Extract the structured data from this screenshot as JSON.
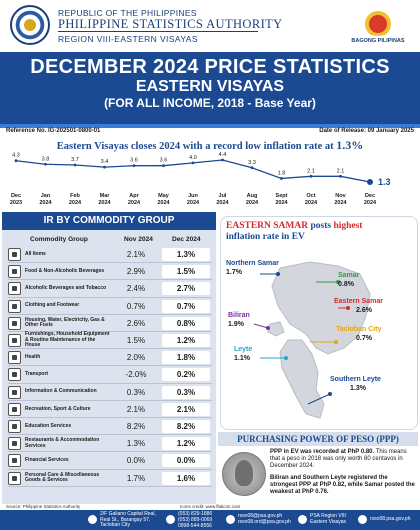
{
  "header": {
    "line1": "REPUBLIC OF THE PHILIPPINES",
    "line2": "PHILIPPINE STATISTICS AUTHORITY",
    "line3": "REGION VIII-EASTERN VISAYAS",
    "logo_label": "BAGONG PILIPINAS"
  },
  "banner": {
    "title": "DECEMBER 2024 PRICE STATISTICS",
    "subtitle": "EASTERN VISAYAS",
    "subtitle2": "(FOR ALL INCOME, 2018 - Base Year)"
  },
  "reference": "Reference No. IG-202501-0800-01",
  "release": "Date of Release: 09 January 2025",
  "headline": {
    "text": "Eastern Visayas closes 2024 with a record low inflation rate at",
    "value": "1.3%"
  },
  "chart_data": {
    "type": "line",
    "categories": [
      "Dec 2023",
      "Jan 2024",
      "Feb 2024",
      "Mar 2024",
      "Apr 2024",
      "May 2024",
      "Jun 2024",
      "Jul 2024",
      "Aug 2024",
      "Sept 2024",
      "Oct 2024",
      "Nov 2024",
      "Dec 2024"
    ],
    "category_line1": [
      "Dec",
      "Jan",
      "Feb",
      "Mar",
      "Apr",
      "May",
      "Jun",
      "Jul",
      "Aug",
      "Sept",
      "Oct",
      "Nov",
      "Dec"
    ],
    "category_line2": [
      "2023",
      "2024",
      "2024",
      "2024",
      "2024",
      "2024",
      "2024",
      "2024",
      "2024",
      "2024",
      "2024",
      "2024",
      "2024"
    ],
    "values": [
      4.3,
      3.8,
      3.7,
      3.4,
      3.6,
      3.6,
      4.0,
      4.4,
      3.3,
      1.8,
      2.1,
      2.1,
      1.3
    ],
    "labels": [
      "4.3",
      "3.8",
      "3.7",
      "3.4",
      "3.6",
      "3.6",
      "4.0",
      "4.4",
      "3.3",
      "1.8",
      "2.1",
      "2.1",
      "1.3"
    ],
    "line_color": "#1b4a93",
    "last_point_color": "#1b4a93"
  },
  "ir_table": {
    "title": "IR BY COMMODITY GROUP",
    "col_group": "Commodity Group",
    "col_nov": "Nov 2024",
    "col_dec": "Dec 2024",
    "rows": [
      {
        "icon": "basket-icon",
        "name": "All Items",
        "nov": "2.1%",
        "dec": "1.3%"
      },
      {
        "icon": "food-icon",
        "name": "Food & Non-Alcoholic Beverages",
        "nov": "2.9%",
        "dec": "1.5%"
      },
      {
        "icon": "bottle-icon",
        "name": "Alcoholic Beverages and Tobacco",
        "nov": "2.4%",
        "dec": "2.7%"
      },
      {
        "icon": "shirt-icon",
        "name": "Clothing and Footwear",
        "nov": "0.7%",
        "dec": "0.7%"
      },
      {
        "icon": "house-icon",
        "name": "Housing, Water, Electricity, Gas & Other Fuels",
        "nov": "2.6%",
        "dec": "0.8%"
      },
      {
        "icon": "sofa-icon",
        "name": "Furnishings, Household Equipment & Routine Maintenance of the House",
        "nov": "1.5%",
        "dec": "1.2%"
      },
      {
        "icon": "health-icon",
        "name": "Health",
        "nov": "2.0%",
        "dec": "1.8%"
      },
      {
        "icon": "car-icon",
        "name": "Transport",
        "nov": "-2.0%",
        "dec": "0.2%"
      },
      {
        "icon": "phone-icon",
        "name": "Information & Communication",
        "nov": "0.3%",
        "dec": "0.3%"
      },
      {
        "icon": "ball-icon",
        "name": "Recreation, Sport & Culture",
        "nov": "2.1%",
        "dec": "2.1%"
      },
      {
        "icon": "school-icon",
        "name": "Education Services",
        "nov": "8.2%",
        "dec": "8.2%"
      },
      {
        "icon": "restaurant-icon",
        "name": "Restaurants & Accommodation Services",
        "nov": "1.3%",
        "dec": "1.2%"
      },
      {
        "icon": "bank-icon",
        "name": "Financial Services",
        "nov": "0.0%",
        "dec": "0.0%"
      },
      {
        "icon": "care-icon",
        "name": "Personal Care & Miscellaneous Goods & Services",
        "nov": "1.7%",
        "dec": "1.6%"
      }
    ]
  },
  "map": {
    "title_part1": "EASTERN SAMAR",
    "title_part2": "posts",
    "title_part3": "highest",
    "title_line2": "inflation rate in EV",
    "provinces": [
      {
        "name": "Northern Samar",
        "value": "1.7%",
        "color": "#1b4a93"
      },
      {
        "name": "Samar",
        "value": "0.8%",
        "color": "#2e9b45"
      },
      {
        "name": "Eastern Samar",
        "value": "2.6%",
        "color": "#d62b2b"
      },
      {
        "name": "Biliran",
        "value": "1.9%",
        "color": "#7a2fa0"
      },
      {
        "name": "Tacloban City",
        "value": "0.7%",
        "color": "#e3a51b"
      },
      {
        "name": "Leyte",
        "value": "1.1%",
        "color": "#22a7c9"
      },
      {
        "name": "Southern Leyte",
        "value": "1.3%",
        "color": "#1b4a93"
      }
    ]
  },
  "ppp": {
    "title": "PURCHASING POWER OF PESO (PPP)",
    "p1_a": "PPP in EV was recorded at PhP 0.80.",
    "p1_b": "This means that a peso in 2018 was only worth 80 centavos in December 2024.",
    "p2_a": "Biliran and Southern Leyte registered the strongest PPP at PhP 0.82, while",
    "p2_b": "Samar posted the weakest at PhP 0.76."
  },
  "footer": {
    "source": "Source: Philippine Statistics Authority",
    "icons_credit": "Icons credit: www.flaticon.com",
    "address": "2/F Galiano Capital Real, Real St., Barangay 57, Tacloban City",
    "phone1": "(053) 829-1886",
    "phone2": "(053) 889-0069",
    "phone3": "0998-544-8556",
    "email1": "rsso08@psa.gov.ph",
    "email2": "rsso08.ord@psa.gov.ph",
    "fb": "PSA Region VIII Eastern Visayas",
    "web": "rsso08.psa.gov.ph"
  }
}
